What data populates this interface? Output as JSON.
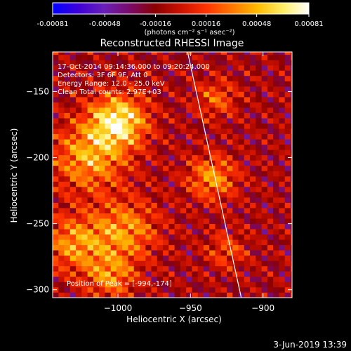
{
  "colorbar": {
    "ticks": [
      "-0.00081",
      "-0.00048",
      "-0.00016",
      "0.00016",
      "0.00048",
      "0.00081"
    ],
    "tick_values": [
      -0.00081,
      -0.00048,
      -0.00016,
      0.00016,
      0.00048,
      0.00081
    ],
    "range": [
      -0.00081,
      0.00081
    ],
    "units": "(photons cm⁻² s⁻¹ asec⁻²)",
    "colors": [
      "#0000ff",
      "#3d00d9",
      "#6a1fb8",
      "#7a0a6a",
      "#8a0000",
      "#cc1100",
      "#ff3300",
      "#ff7700",
      "#ffbb00",
      "#ffee66",
      "#ffffff"
    ]
  },
  "plot": {
    "title": "Reconstructed RHESSI Image",
    "info_lines": [
      "17-Oct-2014 09:14:36.000 to 09:20:24.000",
      "Detectors: 3F 6F 9F, Att 0",
      "Energy Range: 12.0 - 25.0 keV",
      "Clean    Total counts: 2.97E+03"
    ],
    "peak_label": "Position of Peak = [-994,-174]",
    "footer_date": "3-Jun-2019 13:39"
  },
  "chart_data": {
    "type": "heatmap",
    "title": "Reconstructed RHESSI Image",
    "xlabel": "Heliocentric X (arcsec)",
    "ylabel": "Heliocentric Y (arcsec)",
    "xlim": [
      -1045,
      -880
    ],
    "ylim": [
      -306,
      -120
    ],
    "x_ticks": [
      -1000,
      -950,
      -900
    ],
    "x_tick_labels": [
      "−1000",
      "−950",
      "−900"
    ],
    "y_ticks": [
      -300,
      -250,
      -200,
      -150
    ],
    "y_tick_labels": [
      "−300",
      "−250",
      "−200",
      "−150"
    ],
    "peak": [
      -994,
      -174
    ],
    "limb_line": [
      [
        -952,
        -120
      ],
      [
        -915,
        -306
      ]
    ],
    "sources": [
      {
        "x": -1000,
        "y": -172,
        "sigma": 14,
        "amp": 0.0008
      },
      {
        "x": -1020,
        "y": -200,
        "sigma": 18,
        "amp": 0.00055
      },
      {
        "x": -1030,
        "y": -265,
        "sigma": 15,
        "amp": 0.0005
      },
      {
        "x": -995,
        "y": -255,
        "sigma": 16,
        "amp": 0.0005
      },
      {
        "x": -1005,
        "y": -290,
        "sigma": 12,
        "amp": 0.00045
      },
      {
        "x": -935,
        "y": -215,
        "sigma": 12,
        "amp": 0.0005
      },
      {
        "x": -932,
        "y": -155,
        "sigma": 10,
        "amp": 0.00035
      },
      {
        "x": -925,
        "y": -270,
        "sigma": 10,
        "amp": 0.0003
      }
    ]
  }
}
